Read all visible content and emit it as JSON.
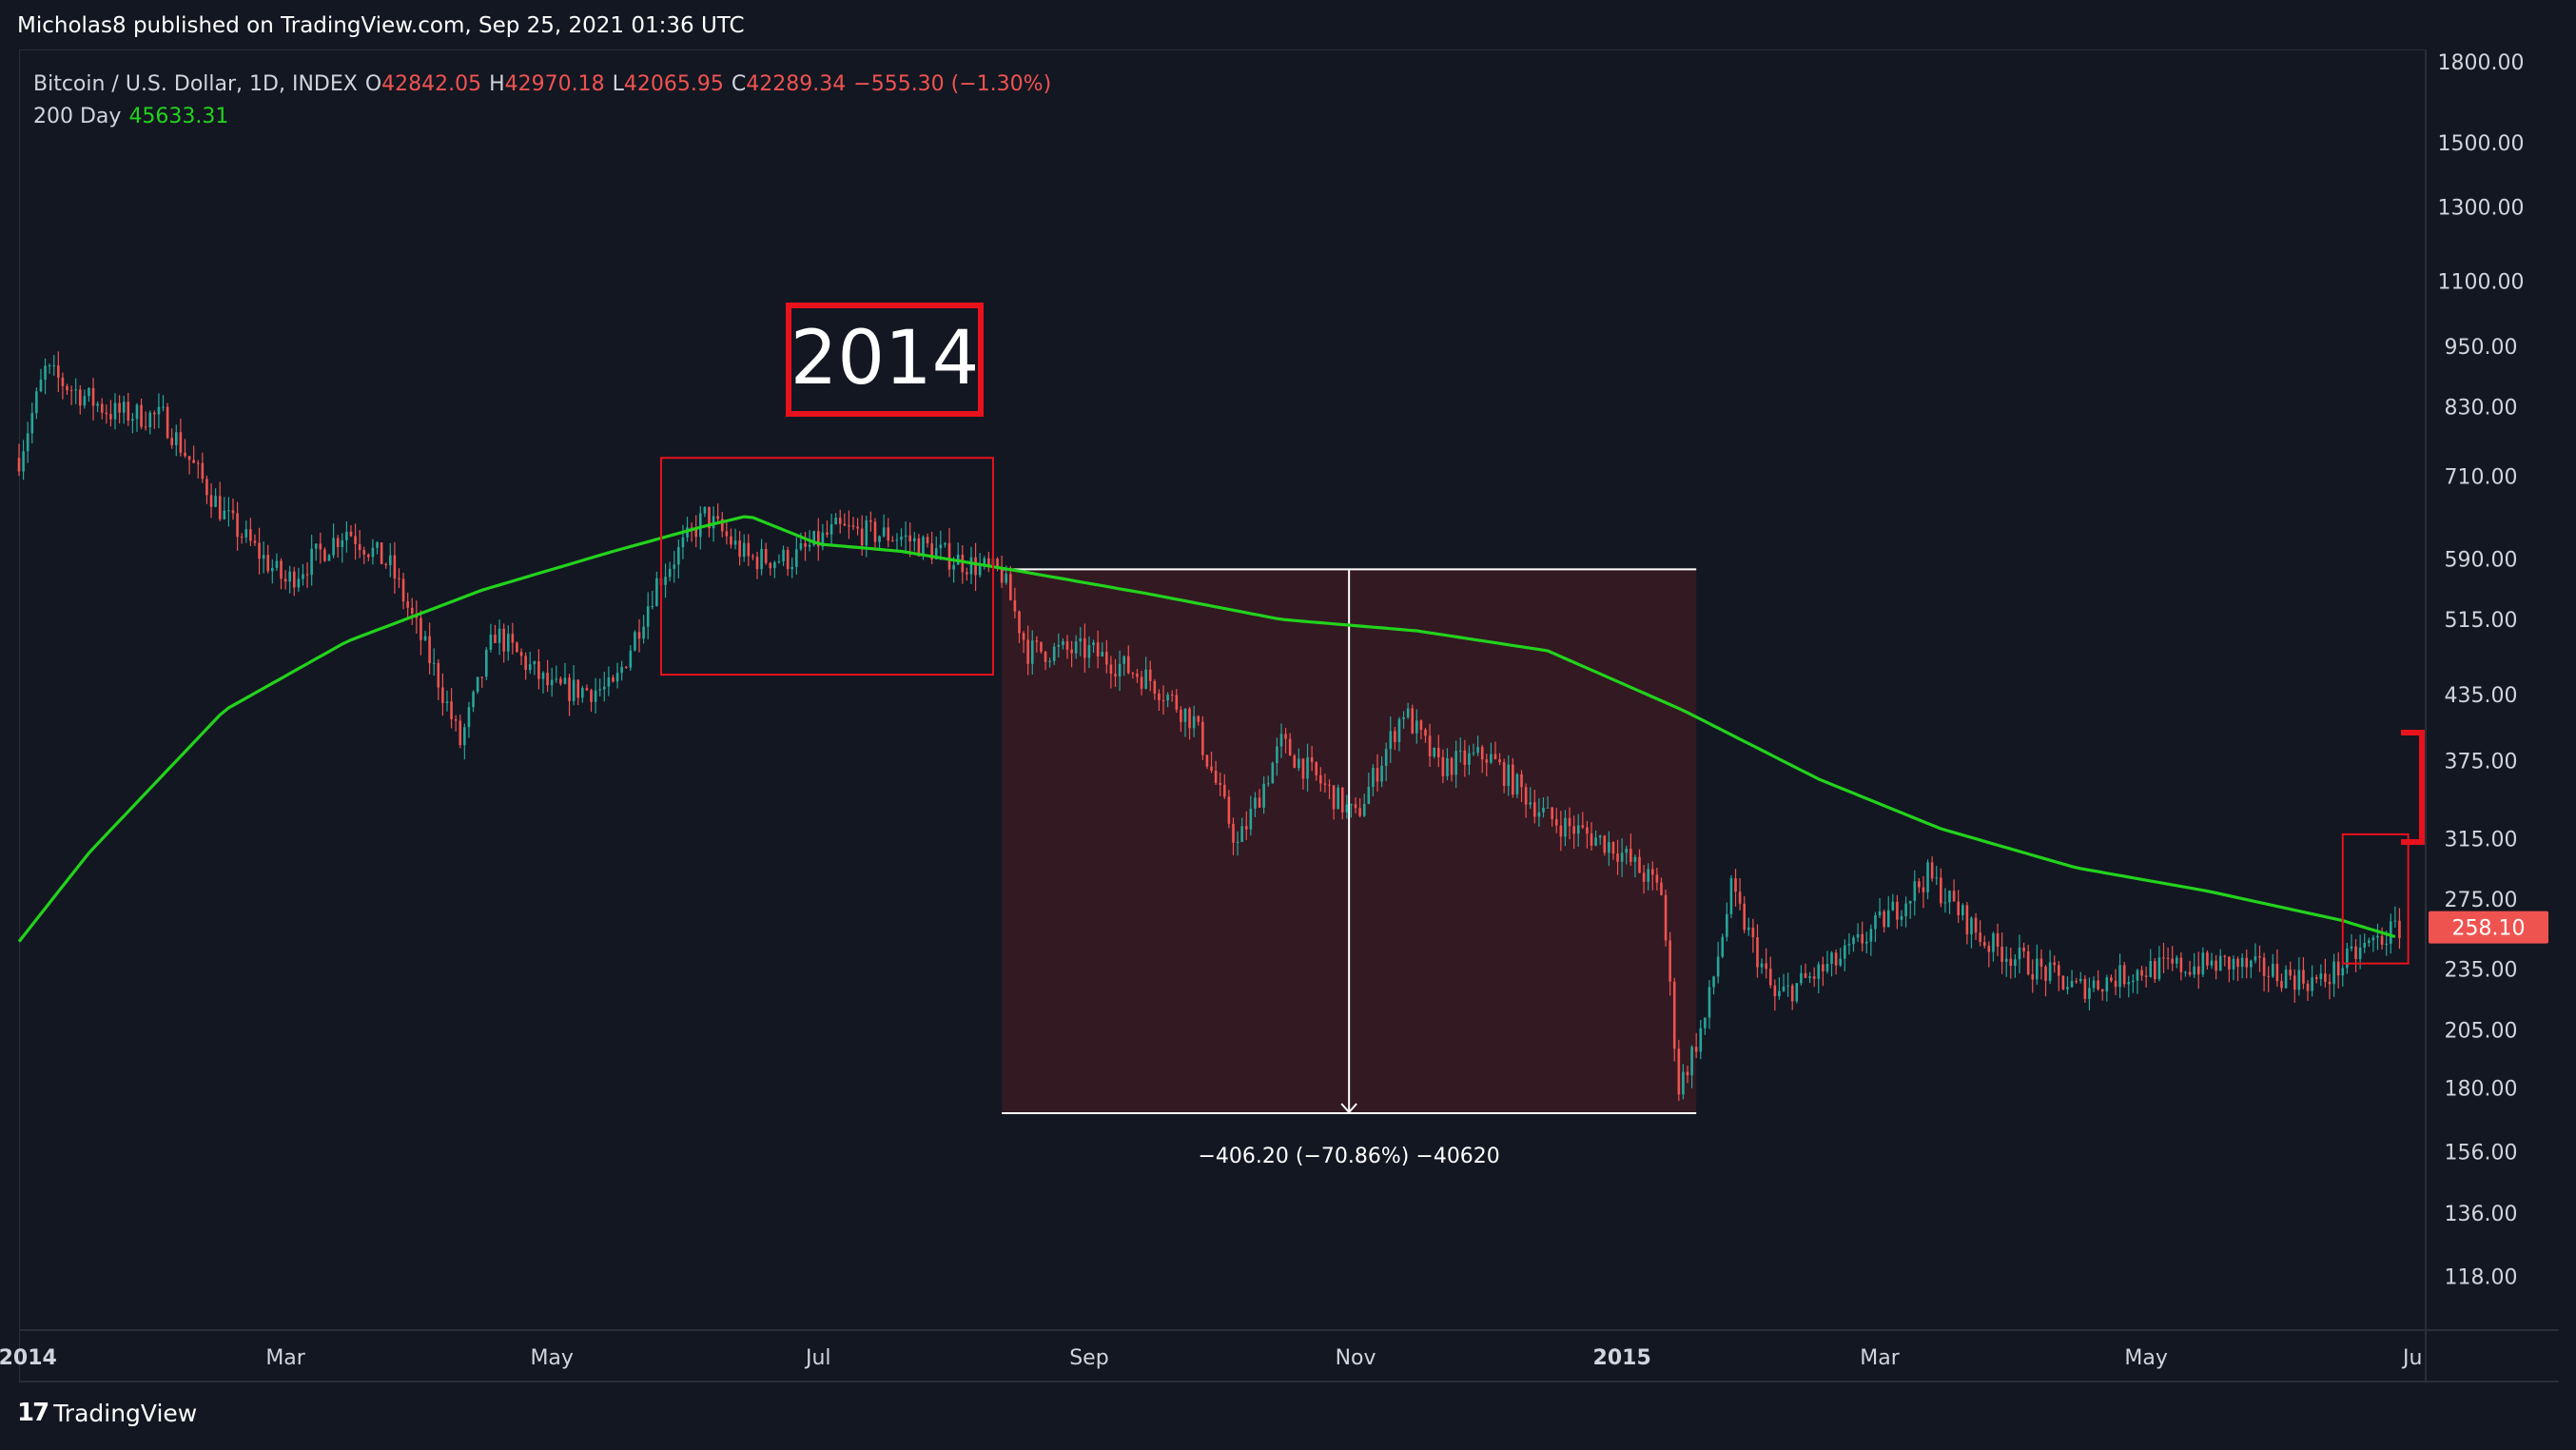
{
  "header": {
    "published_text": "Micholas8 published on TradingView.com, Sep 25, 2021 01:36 UTC"
  },
  "legend": {
    "symbol": "Bitcoin / U.S. Dollar, 1D, INDEX",
    "open_label": "O",
    "open_value": "42842.05",
    "high_label": "H",
    "high_value": "42970.18",
    "low_label": "L",
    "low_value": "42065.95",
    "close_label": "C",
    "close_value": "42289.34",
    "change": "−555.30 (−1.30%)",
    "ma_label": "200 Day",
    "ma_value": "45633.31"
  },
  "annotations": {
    "year_box": "2014",
    "measure_label": "−406.20 (−70.86%) −40620",
    "price_tag": "258.10"
  },
  "footer": {
    "brand": "TradingView"
  },
  "colors": {
    "background": "#131722",
    "up": "#26a69a",
    "down": "#ef5350",
    "ma": "#22d31c",
    "box": "#e8121c",
    "measure_fill": "#3a1a22"
  },
  "chart_data": {
    "type": "candlestick",
    "scale": "log",
    "ylim": [
      105,
      1850
    ],
    "y_ticks": [
      "1800.00",
      "1500.00",
      "1300.00",
      "1100.00",
      "950.00",
      "830.00",
      "710.00",
      "590.00",
      "515.00",
      "435.00",
      "375.00",
      "315.00",
      "275.00",
      "235.00",
      "205.00",
      "180.00",
      "156.00",
      "136.00",
      "118.00"
    ],
    "x_ticks": [
      "2014",
      "Mar",
      "May",
      "Jul",
      "Sep",
      "Nov",
      "2015",
      "Mar",
      "May",
      "Ju"
    ],
    "price_points": [
      [
        "2013-12-30",
        740
      ],
      [
        "2014-01-05",
        900
      ],
      [
        "2014-01-10",
        870
      ],
      [
        "2014-01-20",
        820
      ],
      [
        "2014-02-01",
        810
      ],
      [
        "2014-02-15",
        650
      ],
      [
        "2014-03-01",
        560
      ],
      [
        "2014-03-15",
        630
      ],
      [
        "2014-03-25",
        580
      ],
      [
        "2014-04-05",
        450
      ],
      [
        "2014-04-10",
        390
      ],
      [
        "2014-04-18",
        500
      ],
      [
        "2014-05-01",
        440
      ],
      [
        "2014-05-15",
        440
      ],
      [
        "2014-05-25",
        560
      ],
      [
        "2014-06-05",
        650
      ],
      [
        "2014-06-15",
        590
      ],
      [
        "2014-06-25",
        590
      ],
      [
        "2014-07-05",
        630
      ],
      [
        "2014-07-20",
        620
      ],
      [
        "2014-08-01",
        590
      ],
      [
        "2014-08-12",
        570
      ],
      [
        "2014-08-18",
        480
      ],
      [
        "2014-09-01",
        480
      ],
      [
        "2014-09-15",
        450
      ],
      [
        "2014-09-25",
        410
      ],
      [
        "2014-10-05",
        310
      ],
      [
        "2014-10-15",
        390
      ],
      [
        "2014-11-01",
        330
      ],
      [
        "2014-11-12",
        420
      ],
      [
        "2014-11-20",
        370
      ],
      [
        "2014-12-01",
        380
      ],
      [
        "2014-12-15",
        330
      ],
      [
        "2014-12-30",
        310
      ],
      [
        "2015-01-10",
        280
      ],
      [
        "2015-01-14",
        180
      ],
      [
        "2015-01-20",
        210
      ],
      [
        "2015-01-26",
        280
      ],
      [
        "2015-02-05",
        220
      ],
      [
        "2015-02-20",
        240
      ],
      [
        "2015-03-05",
        270
      ],
      [
        "2015-03-12",
        290
      ],
      [
        "2015-03-25",
        250
      ],
      [
        "2015-04-15",
        225
      ],
      [
        "2015-05-01",
        235
      ],
      [
        "2015-05-20",
        238
      ],
      [
        "2015-06-10",
        228
      ],
      [
        "2015-06-20",
        247
      ],
      [
        "2015-06-28",
        258
      ]
    ],
    "ma_series": {
      "name": "200 Day",
      "points": [
        [
          "2013-12-30",
          250
        ],
        [
          "2014-01-15",
          305
        ],
        [
          "2014-02-15",
          420
        ],
        [
          "2014-03-15",
          490
        ],
        [
          "2014-04-15",
          550
        ],
        [
          "2014-05-15",
          600
        ],
        [
          "2014-06-05",
          635
        ],
        [
          "2014-06-15",
          650
        ],
        [
          "2014-07-01",
          610
        ],
        [
          "2014-07-20",
          600
        ],
        [
          "2014-08-15",
          575
        ],
        [
          "2014-09-15",
          545
        ],
        [
          "2014-10-15",
          515
        ],
        [
          "2014-11-15",
          502
        ],
        [
          "2014-12-15",
          480
        ],
        [
          "2015-01-15",
          420
        ],
        [
          "2015-02-15",
          360
        ],
        [
          "2015-03-15",
          322
        ],
        [
          "2015-04-15",
          295
        ],
        [
          "2015-05-15",
          280
        ],
        [
          "2015-06-15",
          262
        ],
        [
          "2015-06-28",
          252
        ]
      ]
    },
    "measure": {
      "from_date": "2014-08-12",
      "to_date": "2015-01-18",
      "from_price": 576.3,
      "to_price": 170.1,
      "label": "−406.20 (−70.86%) −40620"
    },
    "highlight_boxes": [
      {
        "from_date": "2014-05-26",
        "to_date": "2014-08-10",
        "high": 740,
        "low": 455
      },
      {
        "from_date": "2015-06-15",
        "to_date": "2015-06-30",
        "high": 318,
        "low": 238
      }
    ],
    "last_price": 258.1
  }
}
